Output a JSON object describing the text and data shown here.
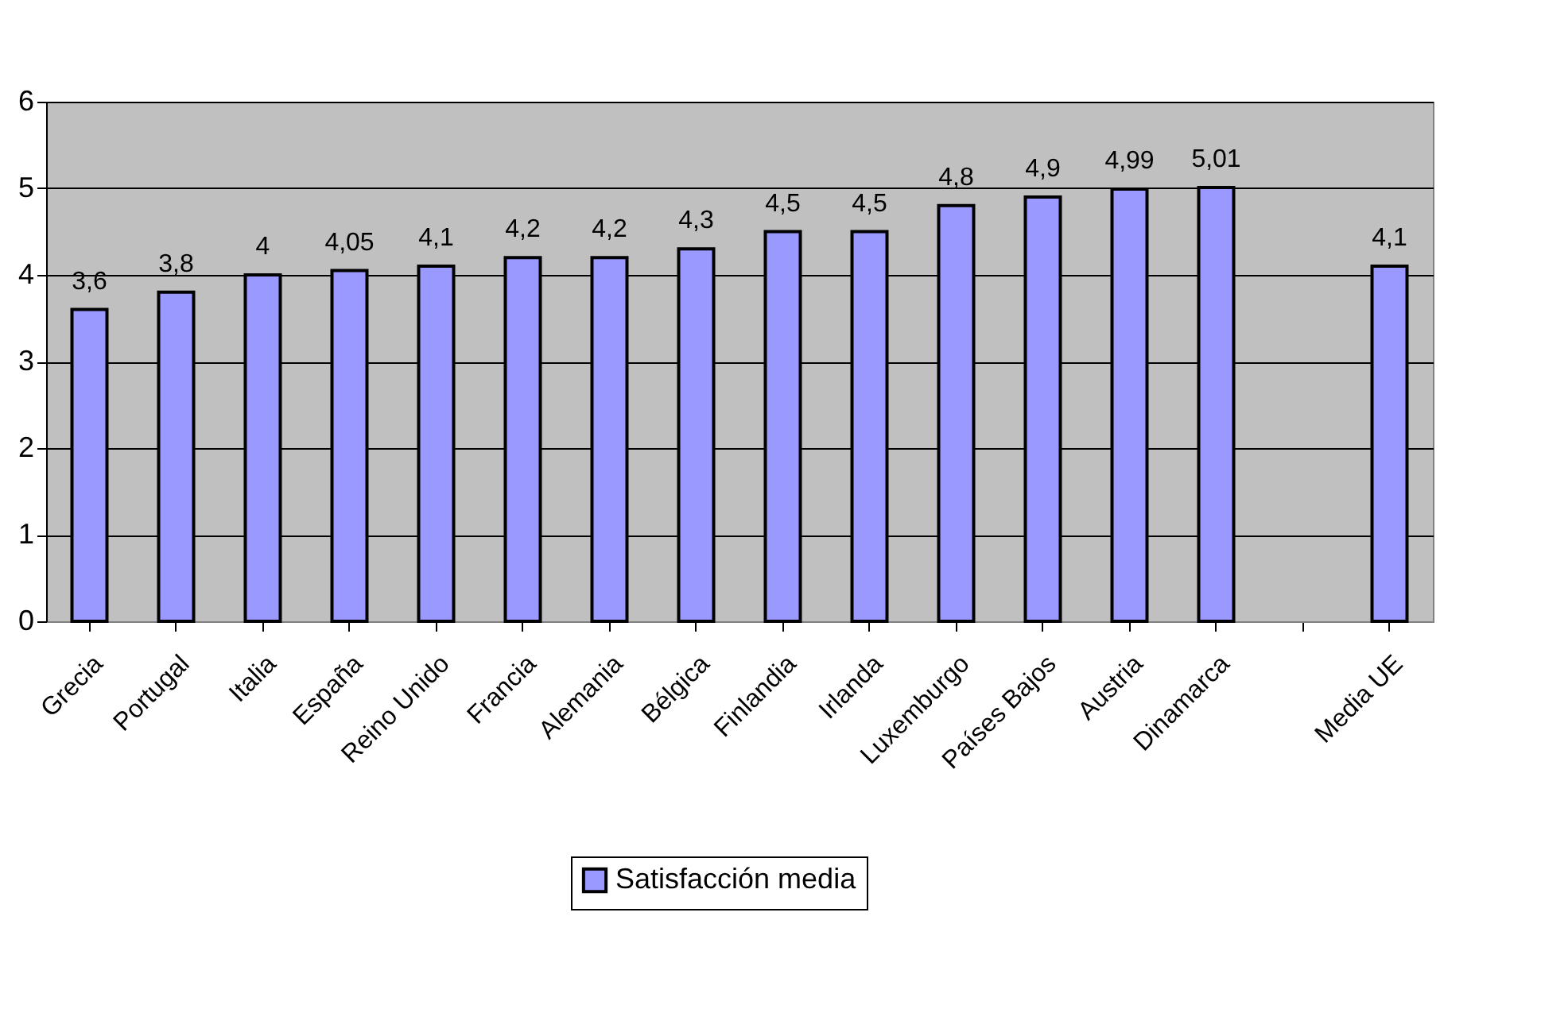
{
  "chart_data": {
    "type": "bar",
    "categories": [
      "Grecia",
      "Portugal",
      "Italia",
      "España",
      "Reino Unido",
      "Francia",
      "Alemania",
      "Bélgica",
      "Finlandia",
      "Irlanda",
      "Luxemburgo",
      "Países Bajos",
      "Austria",
      "Dinamarca",
      null,
      "Media UE"
    ],
    "series": [
      {
        "name": "Satisfacción media",
        "color": "#9999ff",
        "values": [
          3.6,
          3.8,
          4,
          4.05,
          4.1,
          4.2,
          4.2,
          4.3,
          4.5,
          4.5,
          4.8,
          4.9,
          4.99,
          5.01,
          null,
          4.1
        ],
        "value_labels": [
          "3,6",
          "3,8",
          "4",
          "4,05",
          "4,1",
          "4,2",
          "4,2",
          "4,3",
          "4,5",
          "4,5",
          "4,8",
          "4,9",
          "4,99",
          "5,01",
          null,
          "4,1"
        ]
      }
    ],
    "ylim": [
      0,
      6
    ],
    "yticks": [
      0,
      1,
      2,
      3,
      4,
      5,
      6
    ],
    "grid": "y",
    "legend": "bottom"
  }
}
